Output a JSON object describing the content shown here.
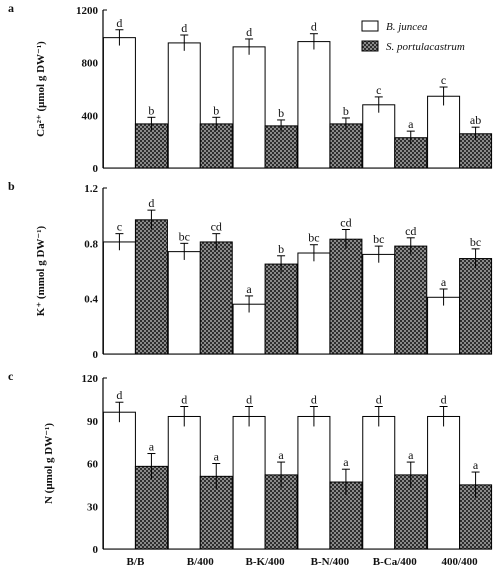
{
  "chart_data": [
    {
      "type": "bar",
      "panel": "a",
      "ylabel": "Ca²⁺ (μmol g DW⁻¹)",
      "ylim": [
        0,
        1200
      ],
      "yticks": [
        "0",
        "400",
        "800",
        "1200"
      ],
      "categories": [
        "B/B",
        "B/400",
        "B-K/400",
        "B-N/400",
        "B-Ca/400",
        "400/400"
      ],
      "legend": {
        "placement": "top-right"
      },
      "series": [
        {
          "name": "B. juncea",
          "values": [
            990,
            950,
            920,
            960,
            480,
            545
          ],
          "errors": [
            60,
            60,
            60,
            60,
            60,
            70
          ],
          "sig": [
            "d",
            "d",
            "d",
            "d",
            "c",
            "c"
          ],
          "fill": "#ffffff"
        },
        {
          "name": "S. portulacastrum",
          "values": [
            335,
            335,
            320,
            335,
            230,
            260
          ],
          "errors": [
            50,
            50,
            45,
            45,
            50,
            50
          ],
          "sig": [
            "b",
            "b",
            "b",
            "b",
            "a",
            "ab"
          ],
          "fill": "#555555"
        }
      ]
    },
    {
      "type": "bar",
      "panel": "b",
      "ylabel": "K⁺ (mmol g DW⁻¹)",
      "ylim": [
        0,
        1.2
      ],
      "yticks": [
        "0",
        "0.4",
        "0.8",
        "1.2"
      ],
      "categories": [
        "B/B",
        "B/400",
        "B-K/400",
        "B-N/400",
        "B-Ca/400",
        "400/400"
      ],
      "series": [
        {
          "name": "B. juncea",
          "values": [
            0.81,
            0.74,
            0.36,
            0.73,
            0.72,
            0.41
          ],
          "errors": [
            0.06,
            0.06,
            0.06,
            0.06,
            0.06,
            0.06
          ],
          "sig": [
            "c",
            "bc",
            "a",
            "bc",
            "bc",
            "a"
          ],
          "fill": "#ffffff"
        },
        {
          "name": "S. portulacastrum",
          "values": [
            0.97,
            0.81,
            0.65,
            0.83,
            0.78,
            0.69
          ],
          "errors": [
            0.07,
            0.06,
            0.06,
            0.07,
            0.06,
            0.07
          ],
          "sig": [
            "d",
            "cd",
            "b",
            "cd",
            "cd",
            "bc"
          ],
          "fill": "#555555"
        }
      ]
    },
    {
      "type": "bar",
      "panel": "c",
      "ylabel": "N (μmol g DW⁻¹)",
      "ylim": [
        0,
        120
      ],
      "yticks": [
        "0",
        "30",
        "60",
        "90",
        "120"
      ],
      "categories": [
        "B/B",
        "B/400",
        "B-K/400",
        "B-N/400",
        "B-Ca/400",
        "400/400"
      ],
      "series": [
        {
          "name": "B. juncea",
          "values": [
            96,
            93,
            93,
            93,
            93,
            93
          ],
          "errors": [
            7,
            7,
            7,
            7,
            7,
            7
          ],
          "sig": [
            "d",
            "d",
            "d",
            "d",
            "d",
            "d"
          ],
          "fill": "#ffffff"
        },
        {
          "name": "S. portulacastrum",
          "values": [
            58,
            51,
            52,
            47,
            52,
            45
          ],
          "errors": [
            9,
            9,
            9,
            9,
            9,
            9
          ],
          "sig": [
            "a",
            "a",
            "a",
            "a",
            "a",
            "a"
          ],
          "fill": "#555555"
        }
      ]
    }
  ]
}
